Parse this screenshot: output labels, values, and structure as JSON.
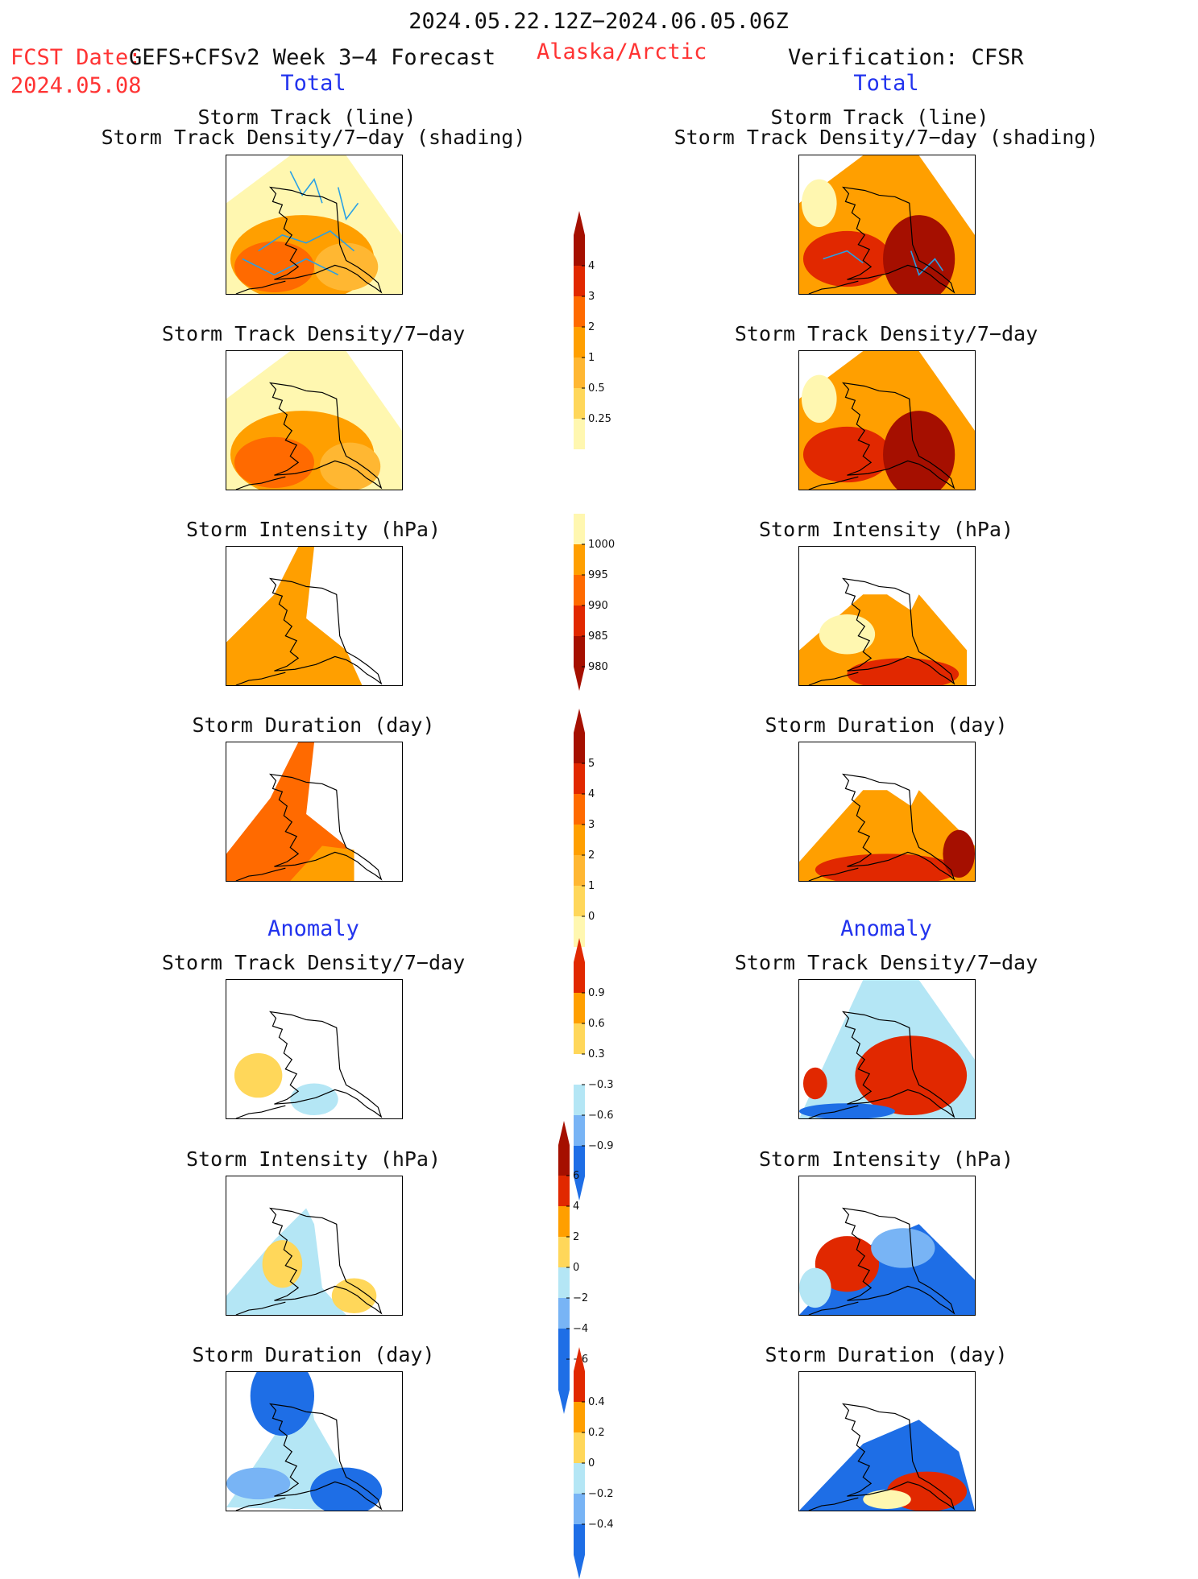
{
  "header": {
    "date_range": "2024.05.22.12Z−2024.06.05.06Z",
    "fcst_label": "FCST Date:",
    "model": "GEFS+CFSv2 Week 3−4 Forecast",
    "fcst_date": "2024.05.08",
    "region": "Alaska/Arctic",
    "verification": "Verification: CFSR"
  },
  "columns": {
    "left_total": "Total",
    "right_total": "Total",
    "left_anomaly": "Anomaly",
    "right_anomaly": "Anomaly"
  },
  "panel_titles": {
    "track_line": "Storm Track (line)",
    "track_shading": "Storm Track Density/7−day (shading)",
    "density": "Storm Track Density/7−day",
    "intensity": "Storm Intensity (hPa)",
    "duration": "Storm Duration (day)"
  },
  "colorbars": {
    "density_total": [
      "4",
      "3",
      "2",
      "1",
      "0.5",
      "0.25"
    ],
    "intensity_total": [
      "1000",
      "995",
      "990",
      "985",
      "980"
    ],
    "duration_total": [
      "5",
      "4",
      "3",
      "2",
      "1",
      "0"
    ],
    "density_anom": [
      "0.9",
      "0.6",
      "0.3",
      "−0.3",
      "−0.6",
      "−0.9"
    ],
    "intensity_anom": [
      "6",
      "4",
      "2",
      "0",
      "−2",
      "−4",
      "−6"
    ],
    "duration_anom": [
      "0.4",
      "0.2",
      "0",
      "−0.2",
      "−0.4"
    ]
  },
  "colors": {
    "pale_yellow": "#fff7b0",
    "yellow": "#ffd75a",
    "light_orange": "#ffb732",
    "orange": "#ff9f00",
    "dark_orange": "#ff6a00",
    "red": "#e12800",
    "dark_red": "#a50f00",
    "light_blue": "#b4e6f5",
    "mid_blue": "#78b4f5",
    "blue": "#1e6ee6",
    "track_line": "#28a0e6"
  }
}
